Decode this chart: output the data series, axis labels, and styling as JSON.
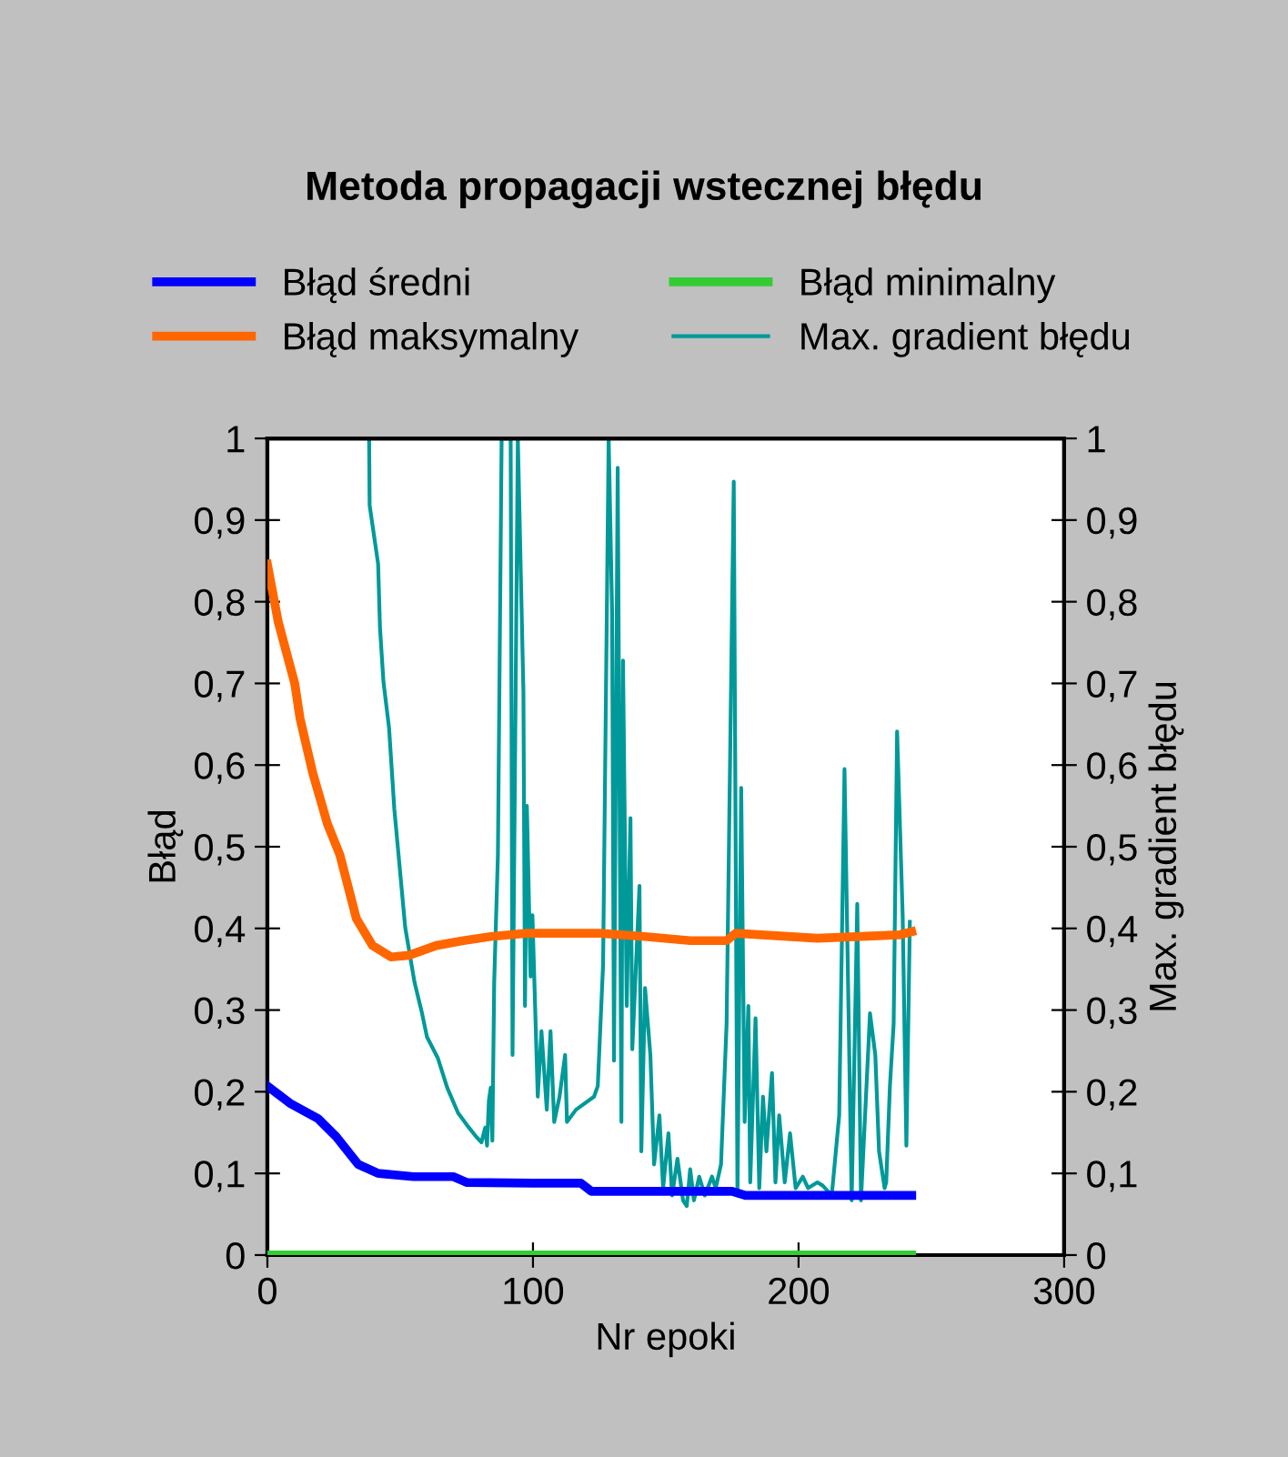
{
  "chart_data": {
    "type": "line",
    "title": "Metoda propagacji wstecznej błędu",
    "xlabel": "Nr epoki",
    "ylabel": "Błąd",
    "y2label": "Max. gradient błędu",
    "xlim": [
      0,
      300
    ],
    "xticks": [
      0,
      100,
      200,
      300
    ],
    "ylim": [
      0,
      1
    ],
    "yticks": [
      0,
      {
        "value": 0.1,
        "label": "0,1"
      },
      {
        "value": 0.2,
        "label": "0,2"
      },
      {
        "value": 0.3,
        "label": "0,3"
      },
      {
        "value": 0.4,
        "label": "0,4"
      },
      {
        "value": 0.5,
        "label": "0,5"
      },
      {
        "value": 0.6,
        "label": "0,6"
      },
      {
        "value": 0.7,
        "label": "0,7"
      },
      {
        "value": 0.8,
        "label": "0,8"
      },
      {
        "value": 0.9,
        "label": "0,9"
      },
      1
    ],
    "y2lim": [
      0,
      1
    ],
    "y2ticks": [
      0,
      {
        "value": 0.1,
        "label": "0,1"
      },
      {
        "value": 0.2,
        "label": "0,2"
      },
      {
        "value": 0.3,
        "label": "0,3"
      },
      {
        "value": 0.4,
        "label": "0,4"
      },
      {
        "value": 0.5,
        "label": "0,5"
      },
      {
        "value": 0.6,
        "label": "0,6"
      },
      {
        "value": 0.7,
        "label": "0,7"
      },
      {
        "value": 0.8,
        "label": "0,8"
      },
      {
        "value": 0.9,
        "label": "0,9"
      },
      1
    ],
    "grid": false,
    "legend": "top",
    "marker": "none",
    "series": [
      {
        "name": "Błąd średni",
        "color": "#0000ff",
        "x": [
          0,
          8.9,
          19.1,
          25.9,
          34.2,
          41.7,
          55,
          70,
          75,
          100,
          118,
          122,
          175,
          180,
          242.6
        ],
        "values": [
          0.207,
          0.185,
          0.167,
          0.145,
          0.111,
          0.1,
          0.096,
          0.096,
          0.089,
          0.088,
          0.088,
          0.078,
          0.078,
          0.073,
          0.073
        ]
      },
      {
        "name": "Błąd minimalny",
        "color": "#33cc33",
        "x": [
          0,
          242.6
        ],
        "values": [
          0,
          0
        ]
      },
      {
        "name": "Błąd maksymalny",
        "color": "#ff6600",
        "x": [
          0,
          4.1,
          10.3,
          12.3,
          17.1,
          22.6,
          27.3,
          33.5,
          39.6,
          46.5,
          53.3,
          63.6,
          73.8,
          84.1,
          97.7,
          125.1,
          142.1,
          159.2,
          172.9,
          176.3,
          207.1,
          237.8,
          242.6
        ],
        "values": [
          0.846,
          0.775,
          0.7,
          0.657,
          0.59,
          0.528,
          0.49,
          0.412,
          0.379,
          0.365,
          0.367,
          0.379,
          0.385,
          0.39,
          0.394,
          0.394,
          0.39,
          0.385,
          0.385,
          0.394,
          0.388,
          0.392,
          0.396
        ]
      },
      {
        "name": "Max. gradient błędu",
        "color": "#009999",
        "axis": "y2",
        "x": [
          38.3,
          38.5,
          41.7,
          42.4,
          43.7,
          45.8,
          47.8,
          51.9,
          55.4,
          58.1,
          60.1,
          64.2,
          67.7,
          71.8,
          75.9,
          78.6,
          80.6,
          82.0,
          82.7,
          83.4,
          84.1,
          84.7,
          85.4,
          86.8,
          88.2,
          91.6,
          92.3,
          94.3,
          96.4,
          97.0,
          97.7,
          99.1,
          99.8,
          101.8,
          103.2,
          105.2,
          106.6,
          108.0,
          110.0,
          112.1,
          112.8,
          116.2,
          123.0,
          124.4,
          126.4,
          128.5,
          129.8,
          130.5,
          131.9,
          133.3,
          133.9,
          135.3,
          136.7,
          137.4,
          140.1,
          140.8,
          142.2,
          144.2,
          145.6,
          147.6,
          149.0,
          151.0,
          152.4,
          154.4,
          156.5,
          157.9,
          159.2,
          160.6,
          162.6,
          164.7,
          167.4,
          168.8,
          170.8,
          172.9,
          175.6,
          177.0,
          178.4,
          179.7,
          181.1,
          181.8,
          183.8,
          185.2,
          186.6,
          187.9,
          190.0,
          191.3,
          192.7,
          194.8,
          196.8,
          198.9,
          201.6,
          203.6,
          207.1,
          209.1,
          212.5,
          215.3,
          217.3,
          220.0,
          222.1,
          223.5,
          226.9,
          228.9,
          230.3,
          232.4,
          233.0,
          234.4,
          235.8,
          237.1,
          239.2,
          240.6,
          241.9
        ],
        "values": [
          1.0,
          0.918,
          0.846,
          0.768,
          0.702,
          0.646,
          0.546,
          0.401,
          0.334,
          0.298,
          0.267,
          0.241,
          0.205,
          0.174,
          0.156,
          0.145,
          0.138,
          0.156,
          0.134,
          0.189,
          0.205,
          0.14,
          0.334,
          0.49,
          1.0,
          1.0,
          0.245,
          1.0,
          0.69,
          0.305,
          0.55,
          0.341,
          0.416,
          0.194,
          0.274,
          0.178,
          0.274,
          0.163,
          0.194,
          0.245,
          0.163,
          0.178,
          0.194,
          0.207,
          0.356,
          1.0,
          0.786,
          0.238,
          0.964,
          0.163,
          0.728,
          0.305,
          0.535,
          0.252,
          0.452,
          0.127,
          0.327,
          0.245,
          0.111,
          0.171,
          0.082,
          0.149,
          0.073,
          0.118,
          0.067,
          0.06,
          0.105,
          0.067,
          0.096,
          0.073,
          0.096,
          0.082,
          0.111,
          0.283,
          0.947,
          0.073,
          0.572,
          0.163,
          0.305,
          0.089,
          0.29,
          0.082,
          0.194,
          0.127,
          0.223,
          0.089,
          0.171,
          0.089,
          0.149,
          0.082,
          0.096,
          0.082,
          0.089,
          0.085,
          0.073,
          0.171,
          0.595,
          0.067,
          0.43,
          0.067,
          0.296,
          0.245,
          0.127,
          0.082,
          0.089,
          0.207,
          0.283,
          0.641,
          0.416,
          0.134,
          0.408
        ]
      }
    ]
  }
}
